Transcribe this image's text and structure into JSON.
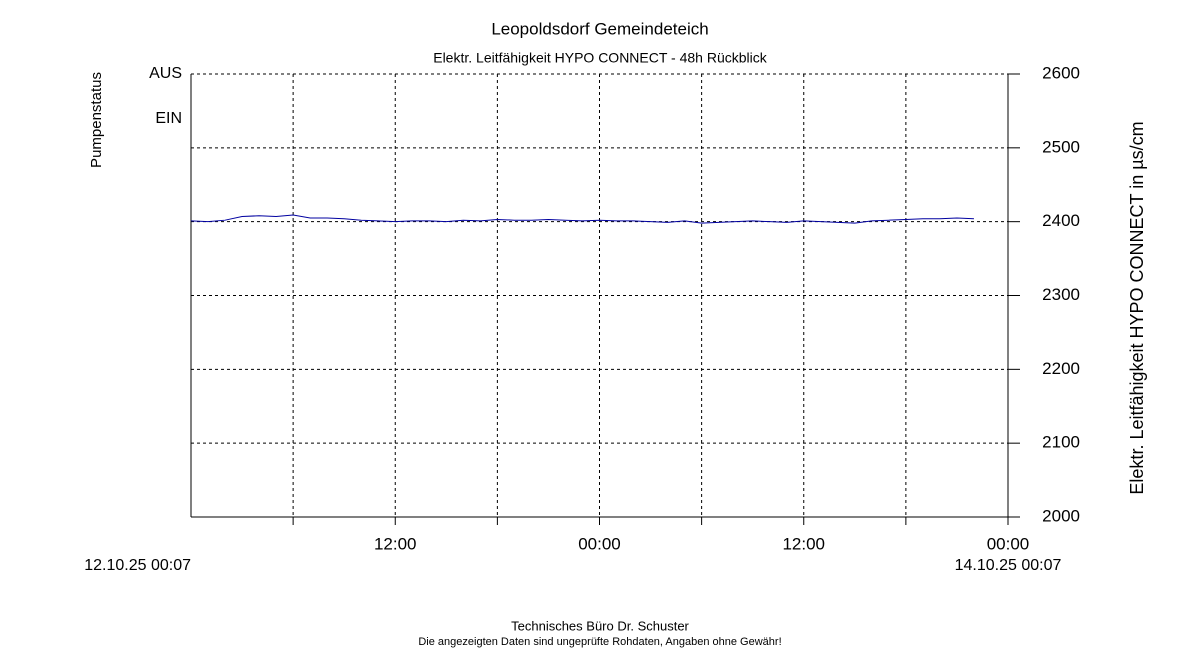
{
  "chart_data": {
    "type": "line",
    "title": "Leopoldsdorf Gemeindeteich",
    "subtitle": "Elektr. Leitfähigkeit HYPO CONNECT - 48h Rückblick",
    "y_label": "Elektr. Leitfähigkeit HYPO CONNECT in µs/cm",
    "pump_axis": {
      "title": "Pumpenstatus",
      "labels": [
        "AUS",
        "EIN"
      ],
      "color": "#ff0000"
    },
    "x_start_label": "12.10.25 00:07",
    "x_end_label": "14.10.25 00:07",
    "x": [
      0,
      1,
      2,
      3,
      4,
      5,
      6,
      7,
      8,
      9,
      10,
      11,
      12,
      13,
      14,
      15,
      16,
      17,
      18,
      19,
      20,
      21,
      22,
      23,
      24,
      25,
      26,
      27,
      28,
      29,
      30,
      31,
      32,
      33,
      34,
      35,
      36,
      37,
      38,
      39,
      40,
      41,
      42,
      43,
      44,
      45,
      46
    ],
    "series": [
      {
        "name": "Elektr. Leitfähigkeit HYPO CONNECT",
        "color": "#0000a0",
        "values": [
          2401,
          2400,
          2402,
          2407,
          2408,
          2407,
          2409,
          2405,
          2405,
          2404,
          2402,
          2401,
          2400,
          2401,
          2401,
          2400,
          2402,
          2401,
          2403,
          2402,
          2402,
          2403,
          2402,
          2401,
          2402,
          2401,
          2401,
          2400,
          2399,
          2401,
          2398,
          2399,
          2400,
          2401,
          2400,
          2399,
          2401,
          2400,
          2399,
          2398,
          2401,
          2402,
          2403,
          2404,
          2404,
          2405,
          2404
        ]
      }
    ],
    "xlim": [
      0,
      48
    ],
    "xticks": [
      {
        "value": 6
      },
      {
        "value": 12,
        "label": "12:00"
      },
      {
        "value": 18
      },
      {
        "value": 24,
        "label": "00:00"
      },
      {
        "value": 30
      },
      {
        "value": 36,
        "label": "12:00"
      },
      {
        "value": 42
      },
      {
        "value": 48,
        "label": "00:00"
      }
    ],
    "ylim": [
      2000,
      2600
    ],
    "yticks": [
      2000,
      2100,
      2200,
      2300,
      2400,
      2500,
      2600
    ],
    "grid": true,
    "footer": "Technisches Büro Dr. Schuster",
    "disclaimer": "Die angezeigten Daten sind ungeprüfte Rohdaten, Angaben ohne Gewähr!"
  }
}
